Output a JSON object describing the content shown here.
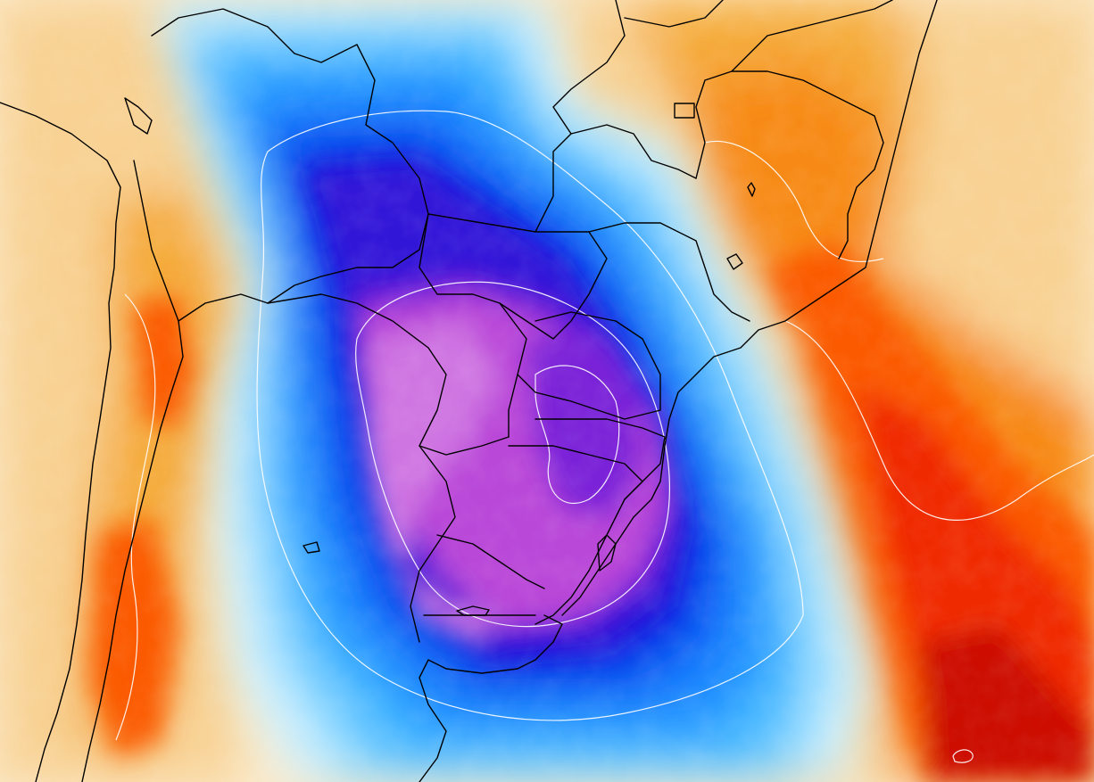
{
  "map": {
    "type": "temperature-anomaly-map",
    "region": "South America",
    "colors": {
      "extreme_warm": "#cc0a00",
      "warm_red": "#f02c00",
      "warm_orange_red": "#fb5a00",
      "warm_orange": "#f78a12",
      "warm_light_orange": "#f5ab3a",
      "warm_pale": "#f8d193",
      "warm_faint": "#fbe8c6",
      "neutral": "#ffffff",
      "cold_faint": "#d5f3ff",
      "cold_pale": "#8fdcff",
      "cold_light": "#3fb8ff",
      "cold": "#1d8bff",
      "cold_strong": "#0b54f5",
      "cold_deep": "#0a1fe0",
      "cold_deep_indigo": "#3312d8",
      "cold_violet": "#7a24d8",
      "cold_magenta": "#b946d8",
      "cold_pink": "#cf74e2",
      "coastline": "#000000",
      "contour": "#ffffff"
    }
  }
}
